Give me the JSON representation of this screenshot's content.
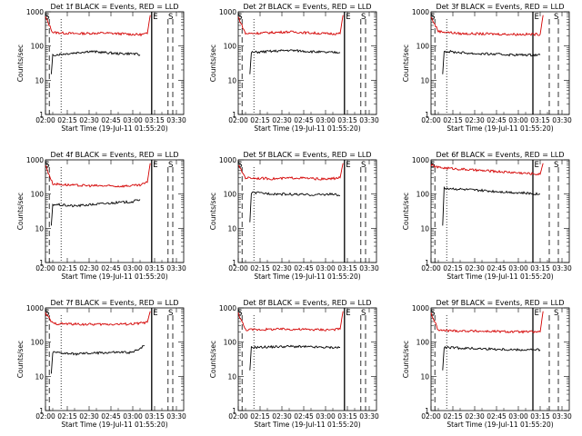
{
  "figure": {
    "colors": {
      "events": "#000000",
      "lld": "#d40000",
      "axes": "#000000",
      "background": "#ffffff"
    }
  },
  "chart_data": [
    {
      "type": "line",
      "title": "Det 1f BLACK = Events, RED = LLD",
      "xlabel": "Start Time (19-Jul-11 01:55:20)",
      "ylabel": "Counts/sec",
      "yscale": "log",
      "ylim": [
        1,
        1000
      ],
      "xlim": [
        "02:00",
        "03:35"
      ],
      "x_ticks": [
        "02:00",
        "02:15",
        "02:30",
        "02:45",
        "03:00",
        "03:15",
        "03:30"
      ],
      "y_ticks": [
        "1",
        "10",
        "100",
        "1000"
      ],
      "markers": [
        {
          "label": "S",
          "x": "01:59:30"
        },
        {
          "label": "E",
          "x": "03:13:00"
        },
        {
          "label": "S",
          "x": "03:27:30"
        }
      ],
      "series": [
        {
          "name": "LLD",
          "values": [
            [
              700,
              "02:00"
            ],
            [
              250,
              "02:05"
            ],
            [
              230,
              "02:20"
            ],
            [
              240,
              "02:40"
            ],
            [
              215,
              "03:05"
            ],
            [
              230,
              "03:10"
            ],
            [
              800,
              "03:12"
            ]
          ]
        },
        {
          "name": "Events",
          "values": [
            [
              15,
              "02:04"
            ],
            [
              55,
              "02:05"
            ],
            [
              60,
              "02:15"
            ],
            [
              70,
              "02:30"
            ],
            [
              60,
              "02:50"
            ],
            [
              60,
              "03:00"
            ],
            [
              55,
              "03:05"
            ]
          ]
        }
      ]
    },
    {
      "type": "line",
      "title": "Det 2f BLACK = Events, RED = LLD",
      "xlabel": "Start Time (19-Jul-11 01:55:20)",
      "ylabel": "Counts/sec",
      "yscale": "log",
      "ylim": [
        1,
        1000
      ],
      "xlim": [
        "02:00",
        "03:35"
      ],
      "x_ticks": [
        "02:00",
        "02:15",
        "02:30",
        "02:45",
        "03:00",
        "03:15",
        "03:30"
      ],
      "y_ticks": [
        "1",
        "10",
        "100",
        "1000"
      ],
      "markers": [
        {
          "label": "S",
          "x": "01:59:30"
        },
        {
          "label": "E",
          "x": "03:13:00"
        },
        {
          "label": "S",
          "x": "03:27:30"
        }
      ],
      "series": [
        {
          "name": "LLD",
          "values": [
            [
              700,
              "02:00"
            ],
            [
              230,
              "02:05"
            ],
            [
              260,
              "02:35"
            ],
            [
              230,
              "03:00"
            ],
            [
              230,
              "03:10"
            ],
            [
              800,
              "03:12"
            ]
          ]
        },
        {
          "name": "Events",
          "values": [
            [
              15,
              "02:08"
            ],
            [
              65,
              "02:09"
            ],
            [
              75,
              "02:35"
            ],
            [
              65,
              "03:00"
            ],
            [
              65,
              "03:10"
            ]
          ]
        }
      ]
    },
    {
      "type": "line",
      "title": "Det 3f BLACK = Events, RED = LLD",
      "xlabel": "Start Time (19-Jul-11 01:55:20)",
      "ylabel": "Counts/sec",
      "yscale": "log",
      "ylim": [
        1,
        1000
      ],
      "xlim": [
        "02:00",
        "03:35"
      ],
      "x_ticks": [
        "02:00",
        "02:15",
        "02:30",
        "02:45",
        "03:00",
        "03:15",
        "03:30"
      ],
      "y_ticks": [
        "1",
        "10",
        "100",
        "1000"
      ],
      "markers": [
        {
          "label": "S",
          "x": "01:59:30"
        },
        {
          "label": "E",
          "x": "03:10:00"
        },
        {
          "label": "S",
          "x": "03:27:30"
        }
      ],
      "series": [
        {
          "name": "LLD",
          "values": [
            [
              700,
              "02:00"
            ],
            [
              270,
              "02:05"
            ],
            [
              230,
              "02:20"
            ],
            [
              220,
              "03:00"
            ],
            [
              220,
              "03:15"
            ],
            [
              800,
              "03:17"
            ]
          ]
        },
        {
          "name": "Events",
          "values": [
            [
              15,
              "02:08"
            ],
            [
              70,
              "02:09"
            ],
            [
              60,
              "02:30"
            ],
            [
              55,
              "03:00"
            ],
            [
              55,
              "03:15"
            ]
          ]
        }
      ]
    },
    {
      "type": "line",
      "title": "Det 4f BLACK = Events, RED = LLD",
      "xlabel": "Start Time (19-Jul-11 01:55:20)",
      "ylabel": "Counts/sec",
      "yscale": "log",
      "ylim": [
        1,
        1000
      ],
      "xlim": [
        "02:00",
        "03:35"
      ],
      "x_ticks": [
        "02:00",
        "02:15",
        "02:30",
        "02:45",
        "03:00",
        "03:15",
        "03:30"
      ],
      "y_ticks": [
        "1",
        "10",
        "100",
        "1000"
      ],
      "markers": [
        {
          "label": "S",
          "x": "01:59:30"
        },
        {
          "label": "E",
          "x": "03:13:00"
        },
        {
          "label": "S",
          "x": "03:27:30"
        }
      ],
      "series": [
        {
          "name": "LLD",
          "values": [
            [
              700,
              "02:00"
            ],
            [
              200,
              "02:05"
            ],
            [
              180,
              "02:20"
            ],
            [
              170,
              "02:50"
            ],
            [
              180,
              "03:05"
            ],
            [
              220,
              "03:10"
            ],
            [
              800,
              "03:12"
            ]
          ]
        },
        {
          "name": "Events",
          "values": [
            [
              12,
              "02:04"
            ],
            [
              50,
              "02:05"
            ],
            [
              45,
              "02:20"
            ],
            [
              55,
              "02:45"
            ],
            [
              60,
              "03:00"
            ],
            [
              70,
              "03:05"
            ]
          ]
        }
      ]
    },
    {
      "type": "line",
      "title": "Det 5f BLACK = Events, RED = LLD",
      "xlabel": "Start Time (19-Jul-11 01:55:20)",
      "ylabel": "Counts/sec",
      "yscale": "log",
      "ylim": [
        1,
        1000
      ],
      "xlim": [
        "02:00",
        "03:35"
      ],
      "x_ticks": [
        "02:00",
        "02:15",
        "02:30",
        "02:45",
        "03:00",
        "03:15",
        "03:30"
      ],
      "y_ticks": [
        "1",
        "10",
        "100",
        "1000"
      ],
      "markers": [
        {
          "label": "S",
          "x": "01:59:30"
        },
        {
          "label": "E",
          "x": "03:13:00"
        },
        {
          "label": "S",
          "x": "03:27:30"
        }
      ],
      "series": [
        {
          "name": "LLD",
          "values": [
            [
              700,
              "02:00"
            ],
            [
              300,
              "02:05"
            ],
            [
              280,
              "02:25"
            ],
            [
              300,
              "02:40"
            ],
            [
              270,
              "03:00"
            ],
            [
              300,
              "03:10"
            ],
            [
              800,
              "03:12"
            ]
          ]
        },
        {
          "name": "Events",
          "values": [
            [
              15,
              "02:08"
            ],
            [
              110,
              "02:09"
            ],
            [
              100,
              "02:30"
            ],
            [
              95,
              "02:50"
            ],
            [
              100,
              "03:05"
            ],
            [
              90,
              "03:10"
            ]
          ]
        }
      ]
    },
    {
      "type": "line",
      "title": "Det 6f BLACK = Events, RED = LLD",
      "xlabel": "Start Time (19-Jul-11 01:55:20)",
      "ylabel": "Counts/sec",
      "yscale": "log",
      "ylim": [
        1,
        1000
      ],
      "xlim": [
        "02:00",
        "03:35"
      ],
      "x_ticks": [
        "02:00",
        "02:15",
        "02:30",
        "02:45",
        "03:00",
        "03:15",
        "03:30"
      ],
      "y_ticks": [
        "1",
        "10",
        "100",
        "1000"
      ],
      "markers": [
        {
          "label": "S",
          "x": "01:59:30"
        },
        {
          "label": "E",
          "x": "03:10:00"
        },
        {
          "label": "S",
          "x": "03:27:30"
        }
      ],
      "series": [
        {
          "name": "LLD",
          "values": [
            [
              700,
              "02:00"
            ],
            [
              600,
              "02:05"
            ],
            [
              500,
              "02:30"
            ],
            [
              420,
              "03:00"
            ],
            [
              380,
              "03:15"
            ],
            [
              800,
              "03:17"
            ]
          ]
        },
        {
          "name": "Events",
          "values": [
            [
              12,
              "02:08"
            ],
            [
              150,
              "02:09"
            ],
            [
              130,
              "02:30"
            ],
            [
              110,
              "03:00"
            ],
            [
              100,
              "03:15"
            ]
          ]
        }
      ]
    },
    {
      "type": "line",
      "title": "Det 7f BLACK = Events, RED = LLD",
      "xlabel": "Start Time (19-Jul-11 01:55:20)",
      "ylabel": "Counts/sec",
      "yscale": "log",
      "ylim": [
        1,
        1000
      ],
      "xlim": [
        "02:00",
        "03:35"
      ],
      "x_ticks": [
        "02:00",
        "02:15",
        "02:30",
        "02:45",
        "03:00",
        "03:15",
        "03:30"
      ],
      "y_ticks": [
        "1",
        "10",
        "100",
        "1000"
      ],
      "markers": [
        {
          "label": "S",
          "x": "01:59:30"
        },
        {
          "label": "E",
          "x": "03:13:00"
        },
        {
          "label": "S",
          "x": "03:27:30"
        }
      ],
      "series": [
        {
          "name": "LLD",
          "values": [
            [
              700,
              "02:00"
            ],
            [
              350,
              "02:05"
            ],
            [
              330,
              "02:30"
            ],
            [
              340,
              "03:00"
            ],
            [
              380,
              "03:10"
            ],
            [
              800,
              "03:12"
            ]
          ]
        },
        {
          "name": "Events",
          "values": [
            [
              12,
              "02:04"
            ],
            [
              50,
              "02:05"
            ],
            [
              45,
              "02:20"
            ],
            [
              50,
              "02:45"
            ],
            [
              50,
              "03:00"
            ],
            [
              80,
              "03:08"
            ]
          ]
        }
      ]
    },
    {
      "type": "line",
      "title": "Det 8f BLACK = Events, RED = LLD",
      "xlabel": "Start Time (19-Jul-11 01:55:20)",
      "ylabel": "Counts/sec",
      "yscale": "log",
      "ylim": [
        1,
        1000
      ],
      "xlim": [
        "02:00",
        "03:35"
      ],
      "x_ticks": [
        "02:00",
        "02:15",
        "02:30",
        "02:45",
        "03:00",
        "03:15",
        "03:30"
      ],
      "y_ticks": [
        "1",
        "10",
        "100",
        "1000"
      ],
      "markers": [
        {
          "label": "S",
          "x": "01:59:30"
        },
        {
          "label": "E",
          "x": "03:13:00"
        },
        {
          "label": "S",
          "x": "03:27:30"
        }
      ],
      "series": [
        {
          "name": "LLD",
          "values": [
            [
              700,
              "02:00"
            ],
            [
              230,
              "02:05"
            ],
            [
              240,
              "02:30"
            ],
            [
              230,
              "03:00"
            ],
            [
              240,
              "03:10"
            ],
            [
              800,
              "03:12"
            ]
          ]
        },
        {
          "name": "Events",
          "values": [
            [
              15,
              "02:08"
            ],
            [
              70,
              "02:09"
            ],
            [
              75,
              "02:35"
            ],
            [
              70,
              "03:00"
            ],
            [
              70,
              "03:10"
            ]
          ]
        }
      ]
    },
    {
      "type": "line",
      "title": "Det 9f BLACK = Events, RED = LLD",
      "xlabel": "Start Time (19-Jul-11 01:55:20)",
      "ylabel": "Counts/sec",
      "yscale": "log",
      "ylim": [
        1,
        1000
      ],
      "xlim": [
        "02:00",
        "03:35"
      ],
      "x_ticks": [
        "02:00",
        "02:15",
        "02:30",
        "02:45",
        "03:00",
        "03:15",
        "03:30"
      ],
      "y_ticks": [
        "1",
        "10",
        "100",
        "1000"
      ],
      "markers": [
        {
          "label": "S",
          "x": "01:59:30"
        },
        {
          "label": "E",
          "x": "03:10:00"
        },
        {
          "label": "S",
          "x": "03:27:30"
        }
      ],
      "series": [
        {
          "name": "LLD",
          "values": [
            [
              700,
              "02:00"
            ],
            [
              220,
              "02:05"
            ],
            [
              210,
              "02:30"
            ],
            [
              200,
              "03:00"
            ],
            [
              200,
              "03:15"
            ],
            [
              800,
              "03:17"
            ]
          ]
        },
        {
          "name": "Events",
          "values": [
            [
              15,
              "02:08"
            ],
            [
              70,
              "02:09"
            ],
            [
              65,
              "02:30"
            ],
            [
              60,
              "03:00"
            ],
            [
              60,
              "03:15"
            ]
          ]
        }
      ]
    }
  ]
}
